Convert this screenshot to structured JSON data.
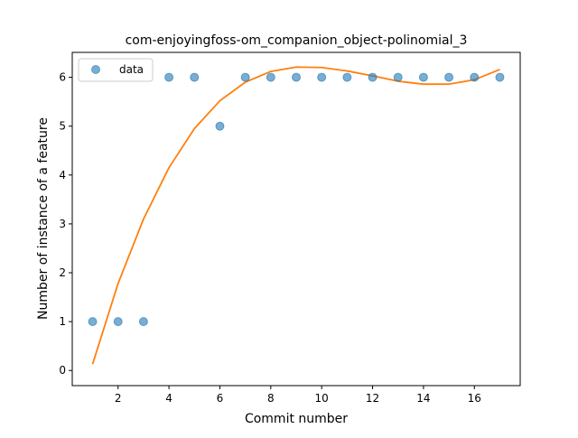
{
  "chart_data": {
    "type": "scatter",
    "title": "com-enjoyingfoss-om_companion_object-polinomial_3",
    "xlabel": "Commit number",
    "ylabel": "Number of instance of a feature",
    "xlim": [
      0.2,
      17.8
    ],
    "ylim": [
      -0.31,
      6.51
    ],
    "xticks": [
      2,
      4,
      6,
      8,
      10,
      12,
      14,
      16
    ],
    "yticks": [
      0,
      1,
      2,
      3,
      4,
      5,
      6
    ],
    "grid": false,
    "legend_position": "upper-left",
    "series": [
      {
        "name": "data",
        "kind": "scatter",
        "color": "#1f77b4",
        "x": [
          1,
          2,
          3,
          4,
          5,
          6,
          7,
          8,
          9,
          10,
          11,
          12,
          13,
          14,
          15,
          16,
          17
        ],
        "y": [
          1,
          1,
          1,
          6,
          6,
          5,
          6,
          6,
          6,
          6,
          6,
          6,
          6,
          6,
          6,
          6,
          6
        ]
      },
      {
        "kind": "line",
        "color": "#ff7f0e",
        "x": [
          1,
          2,
          3,
          4,
          5,
          6,
          7,
          8,
          9,
          10,
          11,
          12,
          13,
          14,
          15,
          16,
          17
        ],
        "y": [
          0.13,
          1.78,
          3.1,
          4.15,
          4.95,
          5.52,
          5.9,
          6.12,
          6.21,
          6.2,
          6.13,
          6.03,
          5.92,
          5.86,
          5.86,
          5.95,
          6.16
        ]
      }
    ]
  }
}
